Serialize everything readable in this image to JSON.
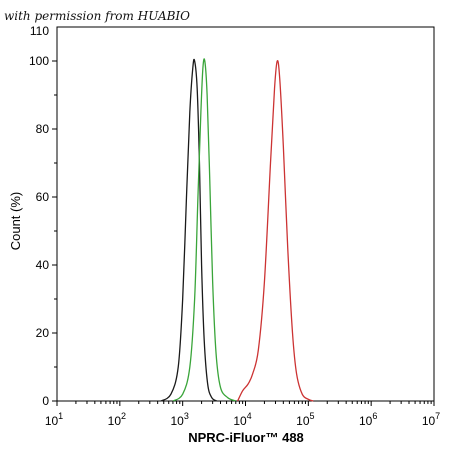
{
  "watermark": "with permission from HUABIO",
  "chart_data": {
    "type": "line",
    "xlabel": "NPRC-iFluor™ 488",
    "ylabel": "Count  (%)",
    "xscale": "log",
    "xlim": [
      10,
      10000000
    ],
    "ylim": [
      0,
      110
    ],
    "x_ticks": [
      {
        "base": "10",
        "exp": "1",
        "value": 10
      },
      {
        "base": "10",
        "exp": "2",
        "value": 100
      },
      {
        "base": "10",
        "exp": "3",
        "value": 1000
      },
      {
        "base": "10",
        "exp": "4",
        "value": 10000
      },
      {
        "base": "10",
        "exp": "5",
        "value": 100000
      },
      {
        "base": "10",
        "exp": "6",
        "value": 1000000
      },
      {
        "base": "10",
        "exp": "7",
        "value": 10000000
      }
    ],
    "y_ticks": [
      "0",
      "20",
      "40",
      "60",
      "80",
      "100"
    ],
    "y_ticks_values": [
      0,
      20,
      40,
      60,
      80,
      100
    ],
    "y_top_tick": "110",
    "grid": false,
    "series": [
      {
        "color": "#1a1a1a",
        "x": [
          450,
          650,
          850,
          1000,
          1150,
          1300,
          1450,
          1550,
          1700,
          1850,
          2000,
          2200,
          2500,
          2900,
          3500
        ],
        "y": [
          0,
          2,
          10,
          30,
          60,
          85,
          98,
          100,
          92,
          70,
          40,
          18,
          5,
          1,
          0
        ]
      },
      {
        "color": "#3aa53a",
        "x": [
          700,
          1000,
          1300,
          1550,
          1750,
          1950,
          2100,
          2250,
          2450,
          2700,
          3000,
          3400,
          4000,
          5200,
          7000
        ],
        "y": [
          0,
          2,
          10,
          30,
          60,
          85,
          98,
          100,
          90,
          65,
          35,
          14,
          4,
          1,
          0
        ]
      },
      {
        "color": "#cc3333",
        "x": [
          7500,
          9000,
          11000,
          13000,
          16000,
          20000,
          25000,
          29000,
          32000,
          35000,
          40000,
          47000,
          56000,
          65000,
          80000,
          100000,
          120000
        ],
        "y": [
          0,
          3,
          5,
          8,
          15,
          35,
          70,
          92,
          100,
          95,
          75,
          45,
          20,
          8,
          2,
          0.5,
          0
        ]
      }
    ]
  }
}
